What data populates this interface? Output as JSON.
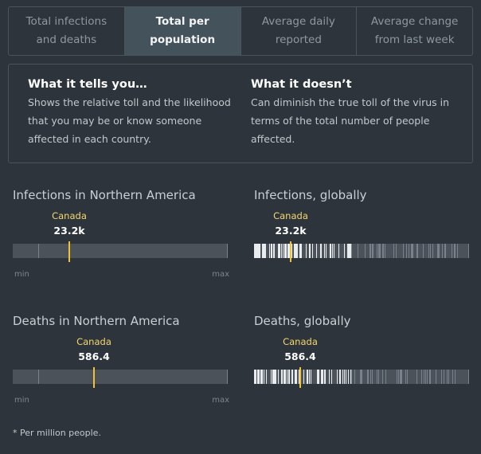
{
  "tabs": [
    {
      "line1": "Total infections",
      "line2": "and deaths",
      "active": false
    },
    {
      "line1": "Total per",
      "line2": "population",
      "active": true
    },
    {
      "line1": "Average daily",
      "line2": "reported",
      "active": false
    },
    {
      "line1": "Average change",
      "line2": "from last week",
      "active": false
    }
  ],
  "info": {
    "tells": {
      "title": "What it tells you…",
      "lines": [
        "Shows the relative toll and the likelihood",
        "that you may be or know someone",
        "affected in each country."
      ]
    },
    "doesnt": {
      "title": "What it doesn’t",
      "lines": [
        "Can diminish the true toll of the virus in",
        "terms of the total number of people",
        "affected."
      ]
    }
  },
  "panels": [
    {
      "title": "Infections in Northern America",
      "marker": {
        "label": "Canada",
        "value": "23.2k",
        "position": 0.26
      },
      "axis": {
        "min": "min",
        "max": "max"
      },
      "ticks": [
        0.12,
        0.26,
        0.997
      ],
      "density": "sparse"
    },
    {
      "title": "Infections, globally",
      "marker": {
        "label": "Canada",
        "value": "23.2k",
        "position": 0.165
      },
      "ticks": [],
      "density": "dense"
    },
    {
      "title": "Deaths in Northern America",
      "marker": {
        "label": "Canada",
        "value": "586.4",
        "position": 0.375
      },
      "axis": {
        "min": "min",
        "max": "max"
      },
      "ticks": [
        0.12,
        0.375,
        0.997
      ],
      "density": "sparse"
    },
    {
      "title": "Deaths, globally",
      "marker": {
        "label": "Canada",
        "value": "586.4",
        "position": 0.21
      },
      "ticks": [],
      "density": "dense"
    }
  ],
  "footnote": "* Per million people.",
  "colors": {
    "marker": "#f1c232",
    "active_tab": "#44525b",
    "background": "#2d343b"
  }
}
